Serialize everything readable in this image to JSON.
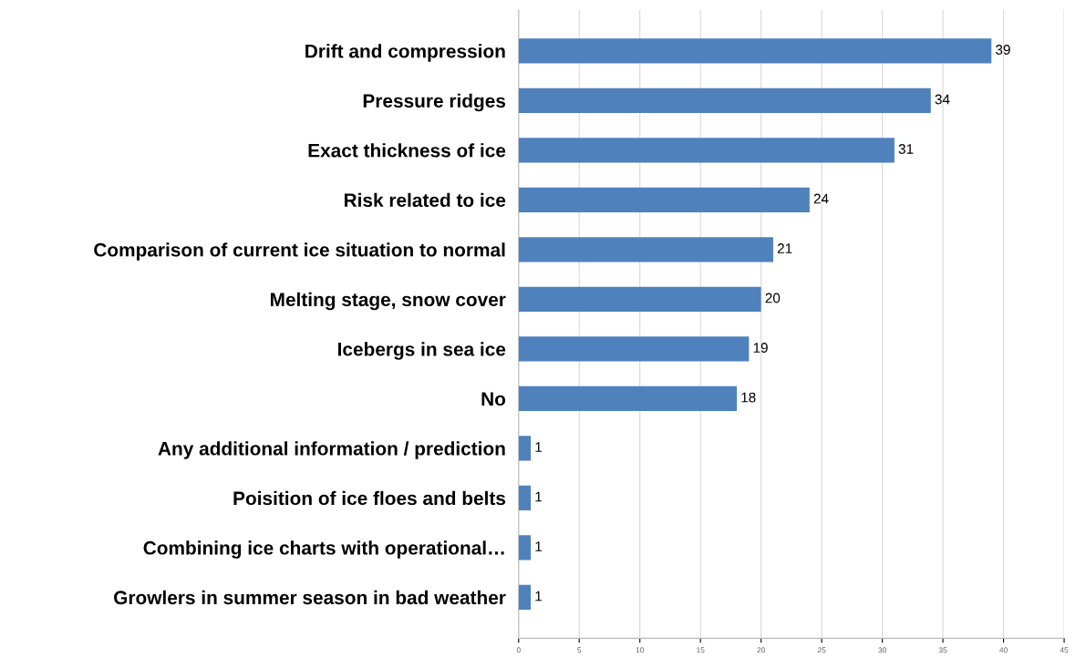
{
  "chart_data": {
    "type": "bar",
    "orientation": "horizontal",
    "categories": [
      "Drift and compression",
      "Pressure ridges",
      "Exact thickness of ice",
      "Risk related to ice",
      "Comparison of current ice situation to normal",
      "Melting stage, snow cover",
      "Icebergs in sea ice",
      "No",
      "Any additional information / prediction",
      "Poisition of ice floes and belts",
      "Combining ice charts with operational…",
      "Growlers in summer season in bad weather"
    ],
    "values": [
      39,
      34,
      31,
      24,
      21,
      20,
      19,
      18,
      1,
      1,
      1,
      1
    ],
    "color": "#4f81bd",
    "xlim": [
      0,
      45
    ],
    "xticks": [
      0,
      5,
      10,
      15,
      20,
      25,
      30,
      35,
      40,
      45
    ],
    "grid": "x",
    "data_labels": true
  }
}
